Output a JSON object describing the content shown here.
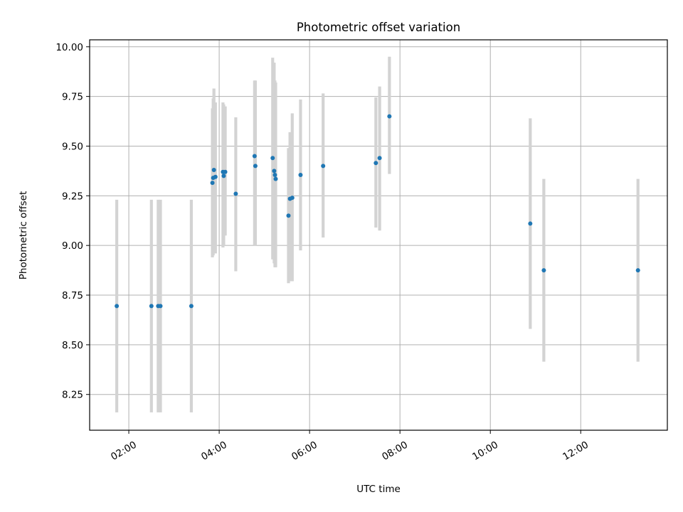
{
  "chart_data": {
    "type": "scatter",
    "title": "Photometric offset variation",
    "xlabel": "UTC time",
    "ylabel": "Photometric offset",
    "grid": true,
    "xlim": [
      "01:08",
      "13:55"
    ],
    "ylim": [
      8.07,
      10.035
    ],
    "x_ticks": [
      "02:00",
      "04:00",
      "06:00",
      "08:00",
      "10:00",
      "12:00"
    ],
    "y_ticks": [
      8.25,
      8.5,
      8.75,
      9.0,
      9.25,
      9.5,
      9.75,
      10.0
    ],
    "y_tick_labels": [
      "8.25",
      "8.50",
      "8.75",
      "9.00",
      "9.25",
      "9.50",
      "9.75",
      "10.00"
    ],
    "colors": {
      "points": "#1f77b4",
      "error_bars": "#d3d3d3",
      "grid": "#b0b0b0"
    },
    "series": [
      {
        "points": [
          {
            "x": "01:44",
            "y": 8.695,
            "low": 8.16,
            "high": 9.23
          },
          {
            "x": "02:30",
            "y": 8.695,
            "low": 8.16,
            "high": 9.23
          },
          {
            "x": "02:39",
            "y": 8.695,
            "low": 8.16,
            "high": 9.23
          },
          {
            "x": "02:42",
            "y": 8.695,
            "low": 8.16,
            "high": 9.23
          },
          {
            "x": "03:23",
            "y": 8.695,
            "low": 8.16,
            "high": 9.23
          },
          {
            "x": "03:51",
            "y": 9.315,
            "low": 8.94,
            "high": 9.69
          },
          {
            "x": "03:52",
            "y": 9.34,
            "low": 8.95,
            "high": 9.74
          },
          {
            "x": "03:53",
            "y": 9.38,
            "low": 8.96,
            "high": 9.79
          },
          {
            "x": "03:55",
            "y": 9.345,
            "low": 8.96,
            "high": 9.72
          },
          {
            "x": "04:05",
            "y": 9.37,
            "low": 8.99,
            "high": 9.72
          },
          {
            "x": "04:06",
            "y": 9.35,
            "low": 9.0,
            "high": 9.71
          },
          {
            "x": "04:08",
            "y": 9.37,
            "low": 9.05,
            "high": 9.7
          },
          {
            "x": "04:22",
            "y": 9.26,
            "low": 8.87,
            "high": 9.645
          },
          {
            "x": "04:47",
            "y": 9.45,
            "low": 9.0,
            "high": 9.83
          },
          {
            "x": "04:48",
            "y": 9.4,
            "low": 9.0,
            "high": 9.83
          },
          {
            "x": "05:11",
            "y": 9.44,
            "low": 8.93,
            "high": 9.945
          },
          {
            "x": "05:13",
            "y": 9.375,
            "low": 8.91,
            "high": 9.92
          },
          {
            "x": "05:14",
            "y": 9.355,
            "low": 8.89,
            "high": 9.83
          },
          {
            "x": "05:15",
            "y": 9.335,
            "low": 8.89,
            "high": 9.82
          },
          {
            "x": "05:32",
            "y": 9.15,
            "low": 8.81,
            "high": 9.49
          },
          {
            "x": "05:34",
            "y": 9.235,
            "low": 8.82,
            "high": 9.57
          },
          {
            "x": "05:37",
            "y": 9.24,
            "low": 8.82,
            "high": 9.665
          },
          {
            "x": "05:48",
            "y": 9.355,
            "low": 8.975,
            "high": 9.735
          },
          {
            "x": "06:18",
            "y": 9.4,
            "low": 9.04,
            "high": 9.765
          },
          {
            "x": "07:28",
            "y": 9.415,
            "low": 9.09,
            "high": 9.745
          },
          {
            "x": "07:33",
            "y": 9.44,
            "low": 9.075,
            "high": 9.8
          },
          {
            "x": "07:46",
            "y": 9.65,
            "low": 9.36,
            "high": 9.95
          },
          {
            "x": "10:53",
            "y": 9.11,
            "low": 8.58,
            "high": 9.64
          },
          {
            "x": "11:11",
            "y": 8.875,
            "low": 8.415,
            "high": 9.335
          },
          {
            "x": "13:16",
            "y": 8.875,
            "low": 8.415,
            "high": 9.335
          }
        ]
      }
    ]
  }
}
